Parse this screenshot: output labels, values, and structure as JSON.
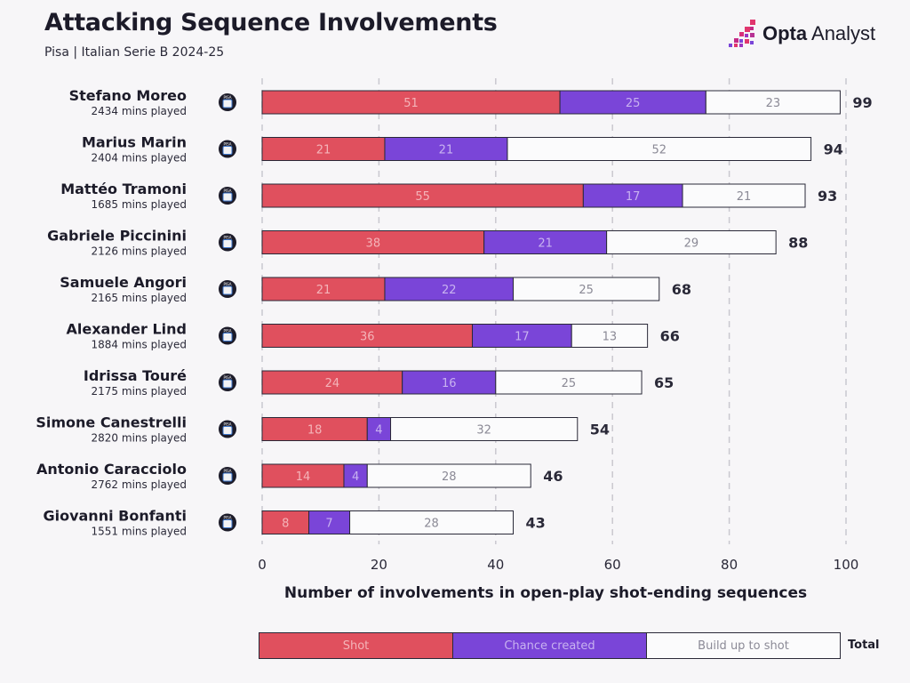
{
  "header": {
    "title": "Attacking Sequence Involvements",
    "subtitle": "Pisa | Italian Serie B 2024-25",
    "brand_bold": "Opta",
    "brand_rest": " Analyst"
  },
  "colors": {
    "shot": "#e0505e",
    "chance": "#7a45d8",
    "build": "#fbfbfc",
    "shot_text": "#f4b4b9",
    "chance_text": "#c8b2f0",
    "build_text": "#8b8a96",
    "grid": "#c9c8cf",
    "ink": "#2a2938"
  },
  "legend": {
    "shot": "Shot",
    "chance": "Chance created",
    "build": "Build up to shot",
    "total": "Total"
  },
  "crest_icon": "club-crest-icon",
  "crest_text": "PISA",
  "chart_data": {
    "type": "bar",
    "orientation": "horizontal",
    "stacked": true,
    "title": "Attacking Sequence Involvements",
    "subtitle": "Pisa | Italian Serie B 2024-25",
    "xlabel": "Number of involvements in open-play shot-ending sequences",
    "ylabel": "",
    "xlim": [
      0,
      100
    ],
    "xticks": [
      0,
      20,
      40,
      60,
      80,
      100
    ],
    "grid": true,
    "legend_position": "bottom",
    "categories": [
      "Stefano Moreo",
      "Marius Marin",
      "Mattéo Tramoni",
      "Gabriele Piccinini",
      "Samuele Angori",
      "Alexander Lind",
      "Idrissa Touré",
      "Simone Canestrelli",
      "Antonio Caracciolo",
      "Giovanni Bonfanti"
    ],
    "minutes": [
      "2434 mins played",
      "2404 mins played",
      "1685 mins played",
      "2126 mins played",
      "2165 mins played",
      "1884 mins played",
      "2175 mins played",
      "2820 mins played",
      "2762 mins played",
      "1551 mins played"
    ],
    "series": [
      {
        "name": "Shot",
        "values": [
          51,
          21,
          55,
          38,
          21,
          36,
          24,
          18,
          14,
          8
        ]
      },
      {
        "name": "Chance created",
        "values": [
          25,
          21,
          17,
          21,
          22,
          17,
          16,
          4,
          4,
          7
        ]
      },
      {
        "name": "Build up to shot",
        "values": [
          23,
          52,
          21,
          29,
          25,
          13,
          25,
          32,
          28,
          28
        ]
      }
    ],
    "totals": [
      99,
      94,
      93,
      88,
      68,
      66,
      65,
      54,
      46,
      43
    ]
  }
}
